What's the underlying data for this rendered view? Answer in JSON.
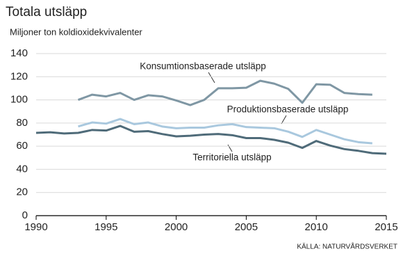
{
  "chart_data": {
    "type": "line",
    "title": "Totala utsläpp",
    "subtitle": "Miljoner ton koldioxidekvivalenter",
    "source": "KÄLLA: NATURVÅRDSVERKET",
    "x": [
      1990,
      1991,
      1992,
      1993,
      1994,
      1995,
      1996,
      1997,
      1998,
      1999,
      2000,
      2001,
      2002,
      2003,
      2004,
      2005,
      2006,
      2007,
      2008,
      2009,
      2010,
      2011,
      2012,
      2013,
      2014,
      2015
    ],
    "series": [
      {
        "name": "Konsumtionsbaserade utsläpp",
        "color": "#7f97a4",
        "values": [
          null,
          null,
          null,
          100,
          104.5,
          103,
          106,
          100,
          104,
          103,
          99.5,
          95.5,
          100,
          110,
          110,
          110.5,
          116.5,
          114,
          109.5,
          97.5,
          113.5,
          113,
          106,
          105,
          104.5,
          null
        ]
      },
      {
        "name": "Produktionsbaserade utsläpp",
        "color": "#a9c8de",
        "values": [
          null,
          null,
          null,
          77,
          80.5,
          79.5,
          83.5,
          79,
          80.5,
          77,
          75.5,
          76,
          76,
          78,
          79,
          76.5,
          76,
          75.5,
          72.5,
          68,
          74,
          70,
          66,
          63.5,
          62.5,
          null
        ]
      },
      {
        "name": "Territoriella utsläpp",
        "color": "#4f6b79",
        "values": [
          71.5,
          72,
          71,
          71.5,
          74,
          73.5,
          77.5,
          72.5,
          73,
          70.5,
          68.5,
          69,
          70,
          70.5,
          69.5,
          67,
          67,
          65.5,
          63,
          58.5,
          64.5,
          60.5,
          57.5,
          56,
          54,
          53.5
        ]
      }
    ],
    "xlim": [
      1990,
      2015
    ],
    "xticks": [
      1990,
      1995,
      2000,
      2005,
      2010,
      2015
    ],
    "ylim": [
      0,
      140
    ],
    "yticks": [
      0,
      20,
      40,
      60,
      80,
      100,
      120,
      140
    ],
    "grid": true
  }
}
